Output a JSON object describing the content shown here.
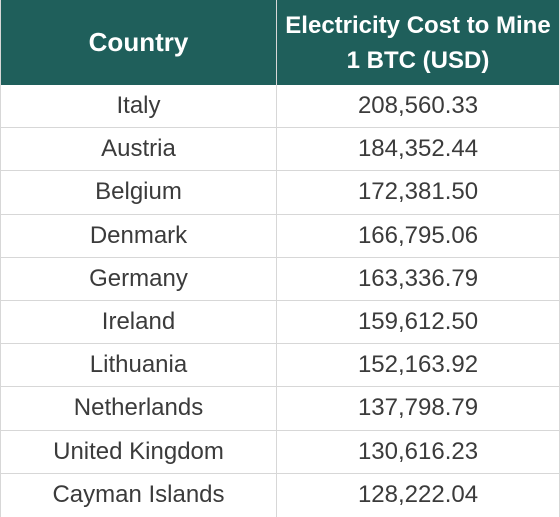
{
  "chart_data": {
    "type": "table",
    "columns": [
      "Country",
      "Electricity Cost to Mine 1 BTC (USD)"
    ],
    "rows": [
      {
        "country": "Italy",
        "cost": "208,560.33"
      },
      {
        "country": "Austria",
        "cost": "184,352.44"
      },
      {
        "country": "Belgium",
        "cost": "172,381.50"
      },
      {
        "country": "Denmark",
        "cost": "166,795.06"
      },
      {
        "country": "Germany",
        "cost": "163,336.79"
      },
      {
        "country": "Ireland",
        "cost": "159,612.50"
      },
      {
        "country": "Lithuania",
        "cost": "152,163.92"
      },
      {
        "country": "Netherlands",
        "cost": "137,798.79"
      },
      {
        "country": "United Kingdom",
        "cost": "130,616.23"
      },
      {
        "country": "Cayman Islands",
        "cost": "128,222.04"
      }
    ],
    "colors": {
      "header_background": "#1f5f5b",
      "header_text": "#ffffff",
      "body_text": "#3b3b3b",
      "grid": "#d7d7d7"
    }
  }
}
